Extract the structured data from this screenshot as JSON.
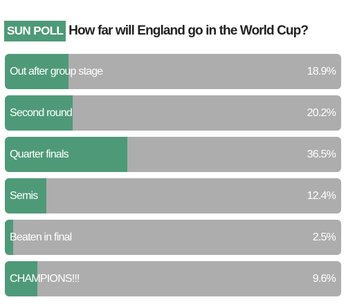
{
  "header": {
    "badge": "SUN POLL",
    "question": "How far will England go in the World Cup?"
  },
  "colors": {
    "accent": "#4e9a78",
    "track": "#adadad",
    "text_on_bar": "#ffffff",
    "question_text": "#222222"
  },
  "options": [
    {
      "label": "Out after group stage",
      "percent_text": "18.9%",
      "value": 18.9
    },
    {
      "label": "Second round",
      "percent_text": "20.2%",
      "value": 20.2
    },
    {
      "label": "Quarter finals",
      "percent_text": "36.5%",
      "value": 36.5
    },
    {
      "label": "Semis",
      "percent_text": "12.4%",
      "value": 12.4
    },
    {
      "label": "Beaten in final",
      "percent_text": "2.5%",
      "value": 2.5
    },
    {
      "label": "CHAMPIONS!!!",
      "percent_text": "9.6%",
      "value": 9.6
    }
  ]
}
